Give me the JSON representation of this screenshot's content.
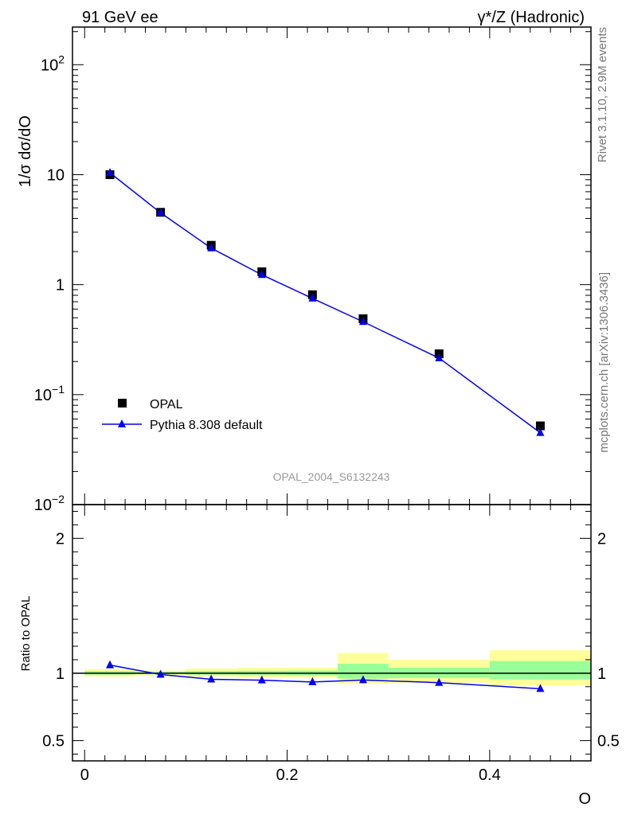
{
  "header": {
    "left_label": "91 GeV ee",
    "right_label_main": "γ*/Z (Hadronic)"
  },
  "side_labels": {
    "version": "Rivet 3.1.10,  2.9M events",
    "source": "mcplots.cern.ch [arXiv:1306.3436]"
  },
  "watermark": "OPAL_2004_S6132243",
  "colors": {
    "data": "#000000",
    "mc": "#0000ee",
    "band_outer": "#ffff99",
    "band_inner": "#99ff99"
  },
  "chart_data": [
    {
      "type": "scatter",
      "panel": "main",
      "ylabel": "1/σ dσ/dO",
      "yscale": "log",
      "ylim": [
        0.01,
        220
      ],
      "xlim": [
        -0.012,
        0.5
      ],
      "y_tick_labels": [
        "10^-2",
        "10^-1",
        "1",
        "10",
        "10^2"
      ],
      "legend_position": "lower-left",
      "series": [
        {
          "name": "OPAL",
          "marker": "square",
          "x": [
            0.025,
            0.075,
            0.125,
            0.175,
            0.225,
            0.275,
            0.35,
            0.45
          ],
          "y": [
            10.0,
            4.55,
            2.28,
            1.31,
            0.81,
            0.49,
            0.235,
            0.052
          ]
        },
        {
          "name": "Pythia 8.308 default",
          "marker": "triangle",
          "line": true,
          "x": [
            0.025,
            0.075,
            0.125,
            0.175,
            0.225,
            0.275,
            0.35,
            0.45
          ],
          "y": [
            10.4,
            4.5,
            2.15,
            1.23,
            0.75,
            0.46,
            0.215,
            0.045
          ]
        }
      ]
    },
    {
      "type": "line",
      "panel": "ratio",
      "ylabel": "Ratio to OPAL",
      "xlabel": "O",
      "ylim": [
        0.35,
        2.25
      ],
      "xlim": [
        -0.012,
        0.5
      ],
      "x_tick_labels": [
        "0",
        "0.2",
        "0.4"
      ],
      "y_tick_labels": [
        "0.5",
        "1",
        "2"
      ],
      "reference_line": 1,
      "bands": [
        {
          "x_range": [
            0.0,
            0.05
          ],
          "outer": [
            0.975,
            1.03
          ],
          "inner": [
            0.99,
            1.015
          ]
        },
        {
          "x_range": [
            0.05,
            0.1
          ],
          "outer": [
            0.985,
            1.02
          ],
          "inner": [
            0.993,
            1.01
          ]
        },
        {
          "x_range": [
            0.1,
            0.15
          ],
          "outer": [
            0.975,
            1.035
          ],
          "inner": [
            0.99,
            1.015
          ]
        },
        {
          "x_range": [
            0.15,
            0.2
          ],
          "outer": [
            0.97,
            1.04
          ],
          "inner": [
            0.988,
            1.018
          ]
        },
        {
          "x_range": [
            0.2,
            0.25
          ],
          "outer": [
            0.97,
            1.04
          ],
          "inner": [
            0.985,
            1.02
          ]
        },
        {
          "x_range": [
            0.25,
            0.3
          ],
          "outer": [
            0.92,
            1.15
          ],
          "inner": [
            0.96,
            1.07
          ]
        },
        {
          "x_range": [
            0.3,
            0.4
          ],
          "outer": [
            0.93,
            1.1
          ],
          "inner": [
            0.965,
            1.04
          ]
        },
        {
          "x_range": [
            0.4,
            0.5
          ],
          "outer": [
            0.91,
            1.17
          ],
          "inner": [
            0.955,
            1.09
          ]
        }
      ],
      "series": [
        {
          "name": "Pythia 8.308 default",
          "marker": "triangle",
          "x": [
            0.025,
            0.075,
            0.125,
            0.175,
            0.225,
            0.275,
            0.35,
            0.45
          ],
          "y": [
            1.06,
            0.99,
            0.955,
            0.948,
            0.935,
            0.95,
            0.93,
            0.885
          ]
        }
      ]
    }
  ]
}
